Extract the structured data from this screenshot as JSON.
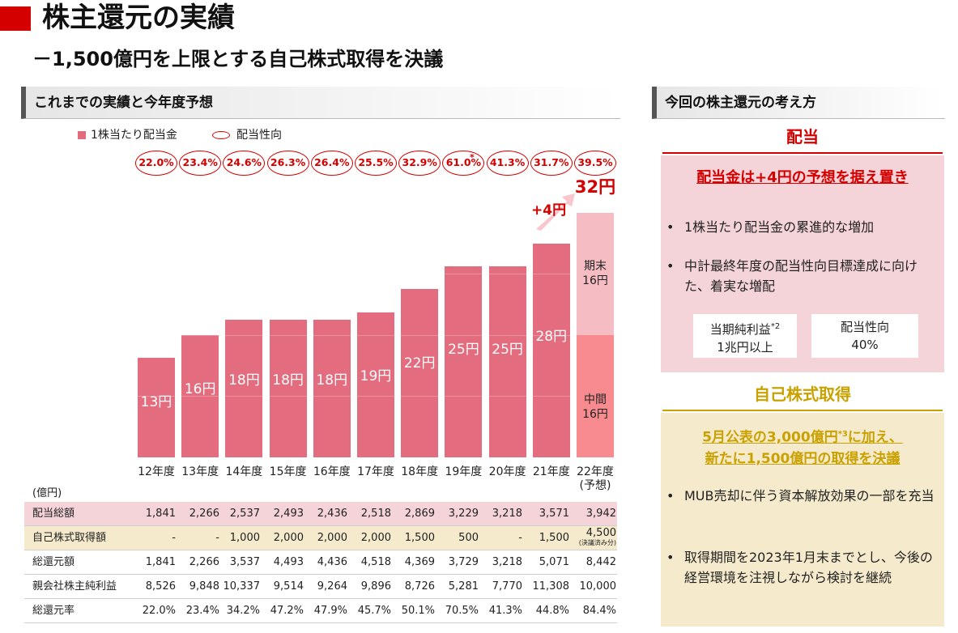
{
  "page": {
    "title": "株主還元の実績",
    "subtitle": "－1,500億円を上限とする自己株式取得を決議"
  },
  "left_section": {
    "header": "これまでの実績と今年度予想",
    "legend": {
      "dividend": "1株当たり配当金",
      "payout": "配当性向"
    },
    "payout_ratios": [
      "22.0%",
      "23.4%",
      "24.6%",
      "26.3%",
      "26.4%",
      "25.5%",
      "32.9%",
      "61.0%",
      "41.3%",
      "31.7%",
      "39.5%"
    ],
    "payout_note_mark": "*",
    "bar_labels": [
      "13円",
      "16円",
      "18円",
      "18円",
      "18円",
      "19円",
      "22円",
      "25円",
      "25円",
      "28円"
    ],
    "forecast": {
      "total_label": "32円",
      "increase_label": "+4円",
      "year_end_label": "期末\n16円",
      "interim_label": "中間\n16円"
    },
    "x_labels": [
      "12年度",
      "13年度",
      "14年度",
      "15年度",
      "16年度",
      "17年度",
      "18年度",
      "19年度",
      "20年度",
      "21年度",
      "22年度\n(予想)"
    ],
    "table_unit": "(億円)",
    "table": {
      "rows": [
        {
          "label": "配当総額",
          "values": [
            "1,841",
            "2,266",
            "2,537",
            "2,493",
            "2,436",
            "2,518",
            "2,869",
            "3,229",
            "3,218",
            "3,571",
            "3,942"
          ]
        },
        {
          "label": "自己株式取得額",
          "values": [
            "-",
            "-",
            "1,000",
            "2,000",
            "2,000",
            "2,000",
            "1,500",
            "500",
            "-",
            "1,500",
            "4,500"
          ],
          "last_note": "(決議済み分)"
        },
        {
          "label": "総還元額",
          "values": [
            "1,841",
            "2,266",
            "3,537",
            "4,493",
            "4,436",
            "4,518",
            "4,369",
            "3,729",
            "3,218",
            "5,071",
            "8,442"
          ]
        },
        {
          "label": "親会社株主純利益",
          "values": [
            "8,526",
            "9,848",
            "10,337",
            "9,514",
            "9,264",
            "9,896",
            "8,726",
            "5,281",
            "7,770",
            "11,308",
            "10,000"
          ]
        },
        {
          "label": "総還元率",
          "values": [
            "22.0%",
            "23.4%",
            "34.2%",
            "47.2%",
            "47.9%",
            "45.7%",
            "50.1%",
            "70.5%",
            "41.3%",
            "44.8%",
            "84.4%"
          ]
        }
      ]
    }
  },
  "chart_data": {
    "type": "bar",
    "categories": [
      "12年度",
      "13年度",
      "14年度",
      "15年度",
      "16年度",
      "17年度",
      "18年度",
      "19年度",
      "20年度",
      "21年度",
      "22年度(予想)"
    ],
    "series": [
      {
        "name": "1株当たり配当金",
        "values": [
          13,
          16,
          18,
          18,
          18,
          19,
          22,
          25,
          25,
          28,
          32
        ]
      }
    ],
    "forecast_breakdown": {
      "interim": 16,
      "year_end": 16
    },
    "payout_ratio": [
      22.0,
      23.4,
      24.6,
      26.3,
      26.4,
      25.5,
      32.9,
      61.0,
      41.3,
      31.7,
      39.5
    ],
    "units": "円",
    "ylim": [
      0,
      34
    ]
  },
  "right_section": {
    "header": "今回の株主還元の考え方",
    "dividend": {
      "title": "配当",
      "headline": "配当金は+4円の予想を据え置き",
      "bullets": [
        "1株当たり配当金の累進的な増加",
        "中計最終年度の配当性向目標達成に向けた、着実な増配"
      ],
      "box1_line1": "当期純利益",
      "box1_note": "*2",
      "box1_line2": "1兆円以上",
      "box2_line1": "配当性向",
      "box2_line2": "40%"
    },
    "buyback": {
      "title": "自己株式取得",
      "headline_part1": "5月公表の3,000億円",
      "headline_note": "*3",
      "headline_part2": "に加え、",
      "headline_line2": "新たに1,500億円の取得を決議",
      "bullets": [
        "MUB売却に伴う資本解放効果の一部を充当",
        "取得期間を2023年1月末までとし、今後の経営環境を注視しながら検討を継続"
      ]
    }
  },
  "colors": {
    "accent_red": "#d40000",
    "bar": "#e36c7f",
    "forecast_top": "#f6bcc3",
    "forecast_bottom": "#f78b8f",
    "gold": "#c9a100",
    "pink_panel": "#f4d3d9",
    "beige_panel": "#f6eacc"
  }
}
